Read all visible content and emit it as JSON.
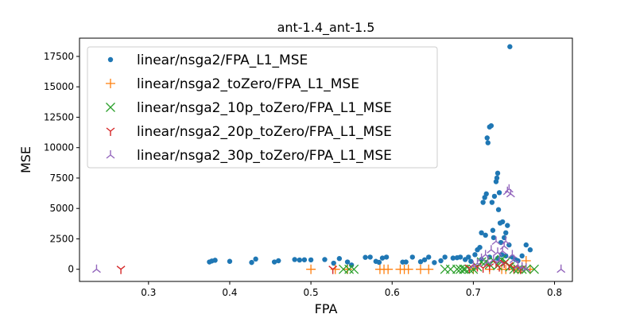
{
  "chart_data": {
    "type": "scatter",
    "title": "ant-1.4_ant-1.5",
    "xlabel": "FPA",
    "ylabel": "MSE",
    "xlim": [
      0.215,
      0.822
    ],
    "ylim": [
      -1000,
      19000
    ],
    "xticks": [
      0.3,
      0.4,
      0.5,
      0.6,
      0.7,
      0.8
    ],
    "yticks": [
      0,
      2500,
      5000,
      7500,
      10000,
      12500,
      15000,
      17500
    ],
    "grid": false,
    "legend_position": "upper-left",
    "series": [
      {
        "name": "linear/nsga2/FPA_L1_MSE",
        "color": "#1f77b4",
        "marker": "dot",
        "points": [
          [
            0.375,
            600
          ],
          [
            0.378,
            680
          ],
          [
            0.382,
            740
          ],
          [
            0.4,
            650
          ],
          [
            0.427,
            560
          ],
          [
            0.432,
            840
          ],
          [
            0.455,
            600
          ],
          [
            0.46,
            700
          ],
          [
            0.48,
            800
          ],
          [
            0.486,
            760
          ],
          [
            0.492,
            780
          ],
          [
            0.5,
            770
          ],
          [
            0.517,
            800
          ],
          [
            0.528,
            500
          ],
          [
            0.535,
            880
          ],
          [
            0.545,
            600
          ],
          [
            0.55,
            350
          ],
          [
            0.567,
            980
          ],
          [
            0.573,
            1000
          ],
          [
            0.58,
            650
          ],
          [
            0.584,
            570
          ],
          [
            0.588,
            920
          ],
          [
            0.593,
            1000
          ],
          [
            0.613,
            590
          ],
          [
            0.617,
            600
          ],
          [
            0.625,
            1000
          ],
          [
            0.635,
            620
          ],
          [
            0.64,
            780
          ],
          [
            0.645,
            1000
          ],
          [
            0.652,
            550
          ],
          [
            0.66,
            700
          ],
          [
            0.665,
            1000
          ],
          [
            0.675,
            920
          ],
          [
            0.68,
            950
          ],
          [
            0.684,
            1000
          ],
          [
            0.69,
            800
          ],
          [
            0.694,
            1000
          ],
          [
            0.697,
            650
          ],
          [
            0.702,
            1200
          ],
          [
            0.705,
            1600
          ],
          [
            0.708,
            1800
          ],
          [
            0.71,
            3000
          ],
          [
            0.712,
            5500
          ],
          [
            0.714,
            5900
          ],
          [
            0.715,
            2800
          ],
          [
            0.716,
            6200
          ],
          [
            0.717,
            10800
          ],
          [
            0.718,
            10400
          ],
          [
            0.72,
            11700
          ],
          [
            0.722,
            11800
          ],
          [
            0.723,
            5500
          ],
          [
            0.724,
            3200
          ],
          [
            0.725,
            2600
          ],
          [
            0.726,
            6000
          ],
          [
            0.728,
            7200
          ],
          [
            0.729,
            7500
          ],
          [
            0.73,
            7900
          ],
          [
            0.731,
            4900
          ],
          [
            0.732,
            6300
          ],
          [
            0.733,
            3800
          ],
          [
            0.734,
            2200
          ],
          [
            0.736,
            3900
          ],
          [
            0.738,
            2600
          ],
          [
            0.74,
            3000
          ],
          [
            0.742,
            3600
          ],
          [
            0.744,
            2000
          ],
          [
            0.745,
            18300
          ],
          [
            0.748,
            1000
          ],
          [
            0.752,
            800
          ],
          [
            0.755,
            700
          ],
          [
            0.76,
            1100
          ],
          [
            0.765,
            2000
          ],
          [
            0.77,
            1600
          ],
          [
            0.71,
            800
          ],
          [
            0.72,
            1000
          ],
          [
            0.73,
            900
          ],
          [
            0.735,
            1200
          ],
          [
            0.74,
            1100
          ]
        ]
      },
      {
        "name": "linear/nsga2_toZero/FPA_L1_MSE",
        "color": "#ff7f0e",
        "marker": "plus",
        "points": [
          [
            0.5,
            0
          ],
          [
            0.53,
            0
          ],
          [
            0.545,
            0
          ],
          [
            0.585,
            0
          ],
          [
            0.59,
            0
          ],
          [
            0.595,
            0
          ],
          [
            0.61,
            0
          ],
          [
            0.615,
            0
          ],
          [
            0.62,
            0
          ],
          [
            0.635,
            0
          ],
          [
            0.645,
            0
          ],
          [
            0.7,
            0
          ],
          [
            0.72,
            0
          ],
          [
            0.735,
            0
          ],
          [
            0.74,
            0
          ],
          [
            0.75,
            0
          ],
          [
            0.755,
            0
          ],
          [
            0.76,
            100
          ],
          [
            0.765,
            700
          ],
          [
            0.77,
            0
          ]
        ]
      },
      {
        "name": "linear/nsga2_10p_toZero/FPA_L1_MSE",
        "color": "#2ca02c",
        "marker": "x",
        "points": [
          [
            0.54,
            0
          ],
          [
            0.547,
            0
          ],
          [
            0.553,
            0
          ],
          [
            0.665,
            0
          ],
          [
            0.672,
            0
          ],
          [
            0.68,
            0
          ],
          [
            0.684,
            0
          ],
          [
            0.688,
            0
          ],
          [
            0.69,
            0
          ],
          [
            0.695,
            0
          ],
          [
            0.7,
            0
          ],
          [
            0.705,
            200
          ],
          [
            0.71,
            600
          ],
          [
            0.715,
            600
          ],
          [
            0.72,
            400
          ],
          [
            0.725,
            700
          ],
          [
            0.73,
            300
          ],
          [
            0.735,
            800
          ],
          [
            0.74,
            600
          ],
          [
            0.745,
            200
          ],
          [
            0.75,
            0
          ],
          [
            0.755,
            0
          ],
          [
            0.76,
            0
          ],
          [
            0.765,
            0
          ],
          [
            0.775,
            0
          ]
        ]
      },
      {
        "name": "linear/nsga2_20p_toZero/FPA_L1_MSE",
        "color": "#d62728",
        "marker": "tri_down",
        "points": [
          [
            0.266,
            0
          ],
          [
            0.527,
            0
          ],
          [
            0.695,
            100
          ],
          [
            0.705,
            200
          ],
          [
            0.712,
            100
          ],
          [
            0.72,
            200
          ],
          [
            0.728,
            500
          ],
          [
            0.732,
            200
          ],
          [
            0.738,
            500
          ],
          [
            0.744,
            300
          ],
          [
            0.75,
            100
          ],
          [
            0.758,
            0
          ]
        ]
      },
      {
        "name": "linear/nsga2_30p_toZero/FPA_L1_MSE",
        "color": "#9467bd",
        "marker": "tri_up",
        "points": [
          [
            0.236,
            0
          ],
          [
            0.808,
            0
          ],
          [
            0.7,
            300
          ],
          [
            0.705,
            500
          ],
          [
            0.71,
            900
          ],
          [
            0.715,
            1200
          ],
          [
            0.718,
            600
          ],
          [
            0.722,
            1600
          ],
          [
            0.725,
            800
          ],
          [
            0.728,
            2300
          ],
          [
            0.73,
            1400
          ],
          [
            0.732,
            700
          ],
          [
            0.736,
            1500
          ],
          [
            0.738,
            1900
          ],
          [
            0.74,
            2300
          ],
          [
            0.742,
            6400
          ],
          [
            0.744,
            6600
          ],
          [
            0.746,
            6200
          ],
          [
            0.748,
            1200
          ],
          [
            0.75,
            800
          ],
          [
            0.755,
            300
          ],
          [
            0.76,
            200
          ],
          [
            0.765,
            100
          ]
        ]
      }
    ]
  }
}
